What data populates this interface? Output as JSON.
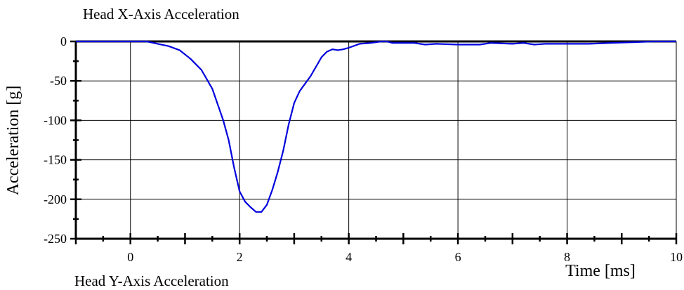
{
  "chart_data": {
    "type": "line",
    "title": "Head X-Axis Acceleration",
    "xlabel": "Time [ms]",
    "ylabel": "Acceleration [g]",
    "xlim": [
      -1,
      10
    ],
    "ylim": [
      -250,
      0
    ],
    "grid": true,
    "x_ticks": [
      0,
      2,
      4,
      6,
      8,
      10
    ],
    "y_ticks": [
      0,
      -50,
      -100,
      -150,
      -200,
      -250
    ],
    "x_tick_labels": [
      "0",
      "2",
      "4",
      "6",
      "8",
      "10"
    ],
    "y_tick_labels": [
      "0",
      "-50",
      "-100",
      "-150",
      "-200",
      "-250"
    ],
    "series": [
      {
        "name": "",
        "color": "#0000dd",
        "x": [
          -1.0,
          -0.5,
          0.0,
          0.3,
          0.5,
          0.7,
          0.9,
          1.1,
          1.3,
          1.5,
          1.7,
          1.8,
          1.9,
          2.0,
          2.1,
          2.2,
          2.3,
          2.4,
          2.5,
          2.6,
          2.7,
          2.8,
          2.9,
          3.0,
          3.1,
          3.3,
          3.5,
          3.6,
          3.7,
          3.8,
          3.9,
          4.0,
          4.2,
          4.4,
          4.6,
          4.7,
          4.8,
          5.0,
          5.2,
          5.4,
          5.6,
          6.0,
          6.4,
          6.6,
          7.0,
          7.2,
          7.4,
          7.6,
          8.0,
          8.4,
          8.8,
          9.2,
          9.6,
          10.0
        ],
        "y": [
          0,
          0,
          0,
          0,
          -3,
          -6,
          -11,
          -22,
          -36,
          -60,
          -100,
          -125,
          -160,
          -190,
          -203,
          -210,
          -216,
          -216,
          -207,
          -188,
          -165,
          -138,
          -105,
          -78,
          -63,
          -44,
          -20,
          -13,
          -10,
          -11,
          -10,
          -8,
          -3,
          -2,
          0,
          0,
          -2,
          -2,
          -2,
          -4,
          -3,
          -4,
          -4,
          -2,
          -3,
          -2,
          -4,
          -3,
          -3,
          -3,
          -2,
          -1,
          0,
          0
        ]
      }
    ]
  },
  "cut_label": "Head Y-Axis Acceleration"
}
